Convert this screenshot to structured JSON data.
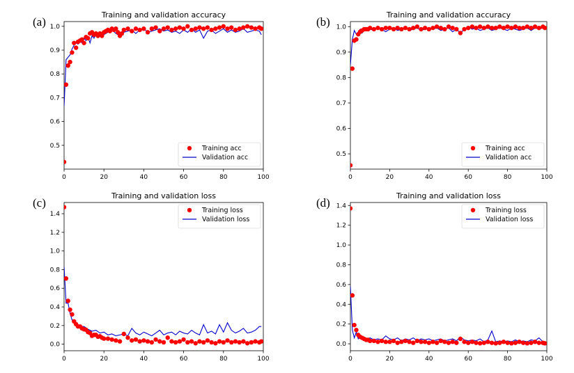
{
  "chart_data": [
    {
      "panel": "(a)",
      "type": "line",
      "title": "Training and validation accuracy",
      "xlim": [
        0,
        100
      ],
      "ylim": [
        0.4,
        1.02
      ],
      "xticks": [
        0,
        20,
        40,
        60,
        80,
        100
      ],
      "yticks": [
        0.5,
        0.6,
        0.7,
        0.8,
        0.9,
        1.0
      ],
      "ytick_labels": [
        "0.5",
        "0.6",
        "0.7",
        "0.8",
        "0.9",
        "1.0"
      ],
      "legend_position": "bottom-right",
      "series": [
        {
          "name": "Training acc",
          "style": "markers",
          "color": "#ff0000",
          "x": [
            0,
            1,
            2,
            3,
            4,
            5,
            6,
            7,
            8,
            9,
            10,
            11,
            12,
            13,
            14,
            15,
            16,
            17,
            18,
            19,
            20,
            21,
            22,
            23,
            24,
            25,
            26,
            27,
            28,
            29,
            30,
            32,
            34,
            36,
            38,
            40,
            42,
            44,
            46,
            48,
            50,
            52,
            54,
            56,
            58,
            60,
            62,
            64,
            66,
            68,
            70,
            72,
            74,
            76,
            78,
            80,
            82,
            84,
            86,
            88,
            90,
            92,
            94,
            96,
            98,
            99
          ],
          "y": [
            0.43,
            0.755,
            0.835,
            0.85,
            0.89,
            0.93,
            0.91,
            0.935,
            0.94,
            0.945,
            0.93,
            0.955,
            0.95,
            0.97,
            0.975,
            0.965,
            0.97,
            0.96,
            0.97,
            0.96,
            0.975,
            0.98,
            0.985,
            0.98,
            0.99,
            0.985,
            0.99,
            0.975,
            0.96,
            0.97,
            0.985,
            0.99,
            0.98,
            0.99,
            0.985,
            0.99,
            0.975,
            0.99,
            0.995,
            0.98,
            0.99,
            0.995,
            0.985,
            0.99,
            0.995,
            0.99,
            1.0,
            0.985,
            0.99,
            0.995,
            0.99,
            0.995,
            0.985,
            0.99,
            0.995,
            1.0,
            0.99,
            0.995,
            0.985,
            0.99,
            0.995,
            1.0,
            0.995,
            0.99,
            0.995,
            0.99
          ]
        },
        {
          "name": "Validation acc",
          "style": "line",
          "color": "#0000cc",
          "x": [
            0,
            1,
            2,
            3,
            4,
            5,
            6,
            7,
            8,
            9,
            10,
            11,
            12,
            13,
            14,
            15,
            16,
            17,
            18,
            19,
            20,
            22,
            24,
            26,
            28,
            30,
            32,
            34,
            36,
            38,
            40,
            42,
            44,
            46,
            48,
            50,
            52,
            54,
            56,
            58,
            60,
            62,
            64,
            66,
            68,
            70,
            72,
            74,
            76,
            78,
            80,
            82,
            84,
            86,
            88,
            90,
            92,
            94,
            96,
            98,
            99
          ],
          "y": [
            0.665,
            0.86,
            0.87,
            0.88,
            0.905,
            0.92,
            0.93,
            0.925,
            0.945,
            0.93,
            0.95,
            0.94,
            0.955,
            0.93,
            0.96,
            0.95,
            0.965,
            0.955,
            0.97,
            0.96,
            0.965,
            0.975,
            0.985,
            0.97,
            0.96,
            0.975,
            0.98,
            0.985,
            0.97,
            0.985,
            0.99,
            0.975,
            0.98,
            0.985,
            0.99,
            0.98,
            0.985,
            0.975,
            0.98,
            0.97,
            0.985,
            0.975,
            0.99,
            0.975,
            0.985,
            0.95,
            0.98,
            0.985,
            0.97,
            0.98,
            0.99,
            0.975,
            0.985,
            0.975,
            0.98,
            0.99,
            0.975,
            0.98,
            0.985,
            0.98,
            0.965
          ]
        }
      ]
    },
    {
      "panel": "(b)",
      "type": "line",
      "title": "Training and validation accuracy",
      "xlim": [
        0,
        100
      ],
      "ylim": [
        0.44,
        1.02
      ],
      "xticks": [
        0,
        20,
        40,
        60,
        80,
        100
      ],
      "yticks": [
        0.5,
        0.6,
        0.7,
        0.8,
        0.9,
        1.0
      ],
      "ytick_labels": [
        "0.5",
        "0.6",
        "0.7",
        "0.8",
        "0.9",
        "1.0"
      ],
      "legend_position": "bottom-right",
      "series": [
        {
          "name": "Training acc",
          "style": "markers",
          "color": "#ff0000",
          "x": [
            0,
            1,
            2,
            3,
            4,
            5,
            6,
            7,
            8,
            9,
            10,
            12,
            14,
            16,
            18,
            20,
            22,
            24,
            26,
            28,
            30,
            32,
            34,
            36,
            38,
            40,
            42,
            44,
            46,
            48,
            50,
            52,
            54,
            56,
            58,
            60,
            62,
            64,
            66,
            68,
            70,
            72,
            74,
            76,
            78,
            80,
            82,
            84,
            86,
            88,
            90,
            92,
            94,
            96,
            98,
            99
          ],
          "y": [
            0.455,
            0.835,
            0.945,
            0.95,
            0.97,
            0.98,
            0.985,
            0.99,
            0.99,
            0.99,
            0.995,
            0.99,
            0.995,
            0.99,
            0.995,
            0.995,
            0.99,
            0.995,
            0.99,
            0.995,
            0.99,
            0.995,
            1.0,
            0.99,
            0.995,
            0.99,
            0.995,
            1.0,
            0.995,
            0.99,
            1.0,
            0.995,
            0.99,
            0.975,
            0.99,
            0.995,
            1.0,
            0.995,
            1.0,
            0.995,
            1.0,
            0.995,
            0.995,
            1.0,
            0.995,
            1.0,
            0.995,
            1.0,
            0.995,
            0.995,
            1.0,
            0.995,
            1.0,
            0.995,
            1.0,
            0.995
          ]
        },
        {
          "name": "Validation acc",
          "style": "line",
          "color": "#0000cc",
          "x": [
            0,
            1,
            2,
            3,
            4,
            5,
            6,
            7,
            8,
            9,
            10,
            12,
            14,
            16,
            18,
            20,
            22,
            24,
            26,
            28,
            30,
            32,
            34,
            36,
            38,
            40,
            42,
            44,
            46,
            48,
            50,
            52,
            54,
            56,
            58,
            60,
            62,
            64,
            66,
            68,
            70,
            72,
            74,
            76,
            78,
            80,
            82,
            84,
            86,
            88,
            90,
            92,
            94,
            96,
            98,
            99
          ],
          "y": [
            0.85,
            0.95,
            0.985,
            0.97,
            0.98,
            0.99,
            0.975,
            0.99,
            0.985,
            0.99,
            0.99,
            0.985,
            0.995,
            0.99,
            0.98,
            0.99,
            0.995,
            0.985,
            0.99,
            0.995,
            0.985,
            0.99,
            0.995,
            0.985,
            0.99,
            0.995,
            0.99,
            0.995,
            0.985,
            0.99,
            0.995,
            0.98,
            0.99,
            0.975,
            0.99,
            1.0,
            0.99,
            0.995,
            0.985,
            0.99,
            0.995,
            0.985,
            0.99,
            0.995,
            0.99,
            0.985,
            0.995,
            0.99,
            0.985,
            0.99,
            0.995,
            0.985,
            0.995,
            0.99,
            0.995,
            0.99
          ]
        }
      ]
    },
    {
      "panel": "(c)",
      "type": "line",
      "title": "Training and validation loss",
      "xlim": [
        0,
        100
      ],
      "ylim": [
        -0.07,
        1.52
      ],
      "xticks": [
        0,
        20,
        40,
        60,
        80,
        100
      ],
      "yticks": [
        0.0,
        0.2,
        0.4,
        0.6,
        0.8,
        1.0,
        1.2,
        1.4
      ],
      "ytick_labels": [
        "0.0",
        "0.2",
        "0.4",
        "0.6",
        "0.8",
        "1.0",
        "1.2",
        "1.4"
      ],
      "legend_position": "top-right",
      "series": [
        {
          "name": "Training loss",
          "style": "markers",
          "color": "#ff0000",
          "x": [
            0,
            1,
            2,
            3,
            4,
            5,
            6,
            7,
            8,
            9,
            10,
            11,
            12,
            13,
            14,
            15,
            16,
            17,
            18,
            19,
            20,
            22,
            24,
            26,
            28,
            30,
            32,
            34,
            36,
            38,
            40,
            42,
            44,
            46,
            48,
            50,
            52,
            54,
            56,
            58,
            60,
            62,
            64,
            66,
            68,
            70,
            72,
            74,
            76,
            78,
            80,
            82,
            84,
            86,
            88,
            90,
            92,
            94,
            96,
            98,
            99
          ],
          "y": [
            1.47,
            0.705,
            0.465,
            0.37,
            0.32,
            0.245,
            0.215,
            0.19,
            0.19,
            0.17,
            0.16,
            0.155,
            0.13,
            0.12,
            0.09,
            0.1,
            0.1,
            0.08,
            0.085,
            0.07,
            0.06,
            0.06,
            0.05,
            0.04,
            0.03,
            0.11,
            0.07,
            0.04,
            0.05,
            0.03,
            0.04,
            0.03,
            0.02,
            0.05,
            0.03,
            0.02,
            0.07,
            0.03,
            0.02,
            0.03,
            0.05,
            0.02,
            0.03,
            0.01,
            0.03,
            0.02,
            0.04,
            0.02,
            0.01,
            0.03,
            0.02,
            0.04,
            0.02,
            0.03,
            0.02,
            0.03,
            0.01,
            0.02,
            0.03,
            0.02,
            0.03
          ]
        },
        {
          "name": "Validation loss",
          "style": "line",
          "color": "#0000cc",
          "x": [
            0,
            1,
            2,
            3,
            4,
            5,
            6,
            7,
            8,
            9,
            10,
            12,
            14,
            16,
            18,
            20,
            22,
            24,
            26,
            28,
            30,
            32,
            34,
            36,
            38,
            40,
            42,
            44,
            46,
            48,
            50,
            52,
            54,
            56,
            58,
            60,
            62,
            64,
            66,
            68,
            70,
            72,
            74,
            76,
            78,
            80,
            82,
            84,
            86,
            88,
            90,
            92,
            94,
            96,
            98,
            99
          ],
          "y": [
            0.83,
            0.44,
            0.44,
            0.33,
            0.26,
            0.26,
            0.22,
            0.21,
            0.2,
            0.19,
            0.19,
            0.16,
            0.14,
            0.15,
            0.12,
            0.13,
            0.1,
            0.11,
            0.09,
            0.1,
            0.11,
            0.09,
            0.17,
            0.12,
            0.1,
            0.13,
            0.11,
            0.09,
            0.12,
            0.15,
            0.1,
            0.12,
            0.13,
            0.1,
            0.14,
            0.12,
            0.11,
            0.15,
            0.12,
            0.1,
            0.21,
            0.12,
            0.14,
            0.11,
            0.21,
            0.13,
            0.23,
            0.15,
            0.12,
            0.14,
            0.17,
            0.12,
            0.13,
            0.15,
            0.19,
            0.19
          ]
        }
      ]
    },
    {
      "panel": "(d)",
      "type": "line",
      "title": "Training and validation loss",
      "xlim": [
        0,
        100
      ],
      "ylim": [
        -0.07,
        1.43
      ],
      "xticks": [
        0,
        20,
        40,
        60,
        80,
        100
      ],
      "yticks": [
        0.0,
        0.2,
        0.4,
        0.6,
        0.8,
        1.0,
        1.2,
        1.4
      ],
      "ytick_labels": [
        "0.0",
        "0.2",
        "0.4",
        "0.6",
        "0.8",
        "1.0",
        "1.2",
        "1.4"
      ],
      "legend_position": "top-right",
      "series": [
        {
          "name": "Training loss",
          "style": "markers",
          "color": "#ff0000",
          "x": [
            0,
            1,
            2,
            3,
            4,
            5,
            6,
            7,
            8,
            9,
            10,
            12,
            14,
            16,
            18,
            20,
            22,
            24,
            26,
            28,
            30,
            32,
            34,
            36,
            38,
            40,
            42,
            44,
            46,
            48,
            50,
            52,
            54,
            56,
            58,
            60,
            62,
            64,
            66,
            68,
            70,
            72,
            74,
            76,
            78,
            80,
            82,
            84,
            86,
            88,
            90,
            92,
            94,
            96,
            98,
            99
          ],
          "y": [
            1.37,
            0.49,
            0.19,
            0.14,
            0.09,
            0.07,
            0.06,
            0.05,
            0.04,
            0.04,
            0.03,
            0.03,
            0.02,
            0.03,
            0.02,
            0.02,
            0.03,
            0.01,
            0.02,
            0.03,
            0.02,
            0.01,
            0.03,
            0.02,
            0.02,
            0.01,
            0.02,
            0.01,
            0.03,
            0.02,
            0.01,
            0.02,
            0.01,
            0.05,
            0.02,
            0.01,
            0.02,
            0.01,
            0.005,
            0.01,
            0.02,
            0.01,
            0.005,
            0.01,
            0.02,
            0.01,
            0.005,
            0.01,
            0.02,
            0.01,
            0.005,
            0.01,
            0.02,
            0.01,
            0.01,
            0.005
          ]
        },
        {
          "name": "Validation loss",
          "style": "line",
          "color": "#0000cc",
          "x": [
            0,
            1,
            2,
            3,
            4,
            5,
            6,
            7,
            8,
            9,
            10,
            12,
            14,
            16,
            18,
            20,
            22,
            24,
            26,
            28,
            30,
            32,
            34,
            36,
            38,
            40,
            42,
            44,
            46,
            48,
            50,
            52,
            54,
            56,
            58,
            60,
            62,
            64,
            66,
            68,
            70,
            72,
            74,
            76,
            78,
            80,
            82,
            84,
            86,
            88,
            90,
            92,
            94,
            96,
            98,
            99
          ],
          "y": [
            0.58,
            0.14,
            0.06,
            0.12,
            0.05,
            0.07,
            0.05,
            0.06,
            0.04,
            0.05,
            0.06,
            0.04,
            0.05,
            0.04,
            0.08,
            0.05,
            0.04,
            0.06,
            0.03,
            0.05,
            0.04,
            0.06,
            0.03,
            0.05,
            0.04,
            0.05,
            0.03,
            0.04,
            0.05,
            0.03,
            0.04,
            0.05,
            0.03,
            0.07,
            0.04,
            0.03,
            0.04,
            0.03,
            0.05,
            0.02,
            0.04,
            0.13,
            0.02,
            0.03,
            0.02,
            0.03,
            0.02,
            0.04,
            0.02,
            0.03,
            0.02,
            0.04,
            0.03,
            0.06,
            0.02,
            0.01
          ]
        }
      ]
    }
  ]
}
